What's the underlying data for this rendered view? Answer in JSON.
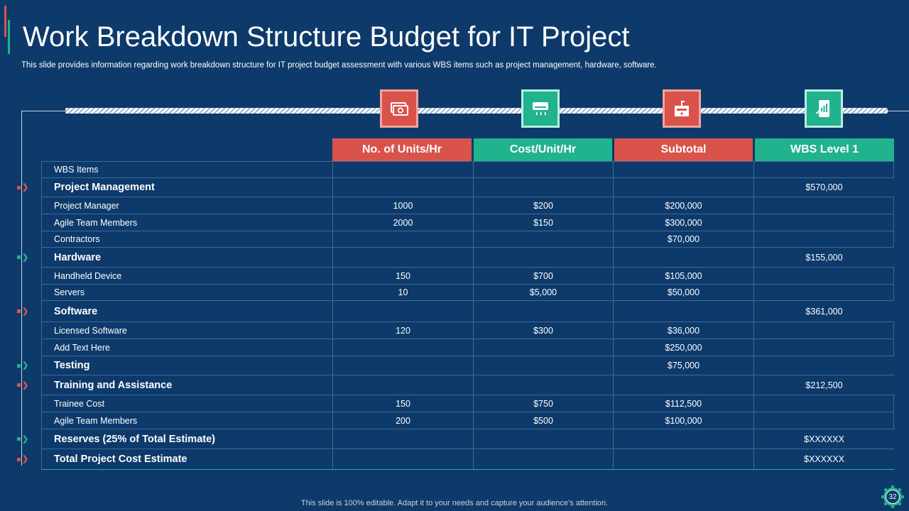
{
  "title": "Work Breakdown Structure Budget for IT Project",
  "subtitle": "This slide provides information regarding work breakdown structure for IT project budget assessment with various WBS items such as project management, hardware, software.",
  "icons": [
    "money-bills-icon",
    "air-conditioner-icon",
    "sink-cabinet-icon",
    "mobile-analytics-icon"
  ],
  "headers": [
    "No. of Units/Hr",
    "Cost/Unit/Hr",
    "Subtotal",
    "WBS Level 1"
  ],
  "rows": [
    {
      "item": "WBS Items",
      "units": "",
      "cost": "",
      "subtotal": "",
      "level1": "",
      "group": false,
      "marker": ""
    },
    {
      "item": "Project Management",
      "units": "",
      "cost": "",
      "subtotal": "",
      "level1": "$570,000",
      "group": true,
      "marker": "red"
    },
    {
      "item": "Project Manager",
      "units": "1000",
      "cost": "$200",
      "subtotal": "$200,000",
      "level1": "",
      "group": false,
      "marker": ""
    },
    {
      "item": "Agile Team Members",
      "units": "2000",
      "cost": "$150",
      "subtotal": "$300,000",
      "level1": "",
      "group": false,
      "marker": ""
    },
    {
      "item": "Contractors",
      "units": "",
      "cost": "",
      "subtotal": "$70,000",
      "level1": "",
      "group": false,
      "marker": ""
    },
    {
      "item": "Hardware",
      "units": "",
      "cost": "",
      "subtotal": "",
      "level1": "$155,000",
      "group": true,
      "marker": "teal"
    },
    {
      "item": "Handheld Device",
      "units": "150",
      "cost": "$700",
      "subtotal": "$105,000",
      "level1": "",
      "group": false,
      "marker": ""
    },
    {
      "item": "Servers",
      "units": "10",
      "cost": "$5,000",
      "subtotal": "$50,000",
      "level1": "",
      "group": false,
      "marker": ""
    },
    {
      "item": "Software",
      "units": "",
      "cost": "",
      "subtotal": "",
      "level1": "$361,000",
      "group": true,
      "marker": "red"
    },
    {
      "item": "Licensed Software",
      "units": "120",
      "cost": "$300",
      "subtotal": "$36,000",
      "level1": "",
      "group": false,
      "marker": ""
    },
    {
      "item": "Add Text Here",
      "units": "",
      "cost": "",
      "subtotal": "$250,000",
      "level1": "",
      "group": false,
      "marker": ""
    },
    {
      "item": "Testing",
      "units": "",
      "cost": "",
      "subtotal": "$75,000",
      "level1": "",
      "group": true,
      "marker": "teal"
    },
    {
      "item": "Training and Assistance",
      "units": "",
      "cost": "",
      "subtotal": "",
      "level1": "$212,500",
      "group": true,
      "marker": "red"
    },
    {
      "item": "Trainee  Cost",
      "units": "150",
      "cost": "$750",
      "subtotal": "$112,500",
      "level1": "",
      "group": false,
      "marker": ""
    },
    {
      "item": "Agile Team Members",
      "units": "200",
      "cost": "$500",
      "subtotal": "$100,000",
      "level1": "",
      "group": false,
      "marker": ""
    },
    {
      "item": "Reserves (25% of Total Estimate)",
      "units": "",
      "cost": "",
      "subtotal": "",
      "level1": "$XXXXXX",
      "group": true,
      "marker": "teal"
    },
    {
      "item": "Total Project Cost Estimate",
      "units": "",
      "cost": "",
      "subtotal": "",
      "level1": "$XXXXXX",
      "group": true,
      "marker": "red"
    }
  ],
  "footer": "This slide is 100% editable. Adapt it to your needs and capture your audience’s attention.",
  "page_number": "32",
  "colors": {
    "background": "#0d3a6a",
    "red": "#d9534a",
    "teal": "#21b28e"
  }
}
